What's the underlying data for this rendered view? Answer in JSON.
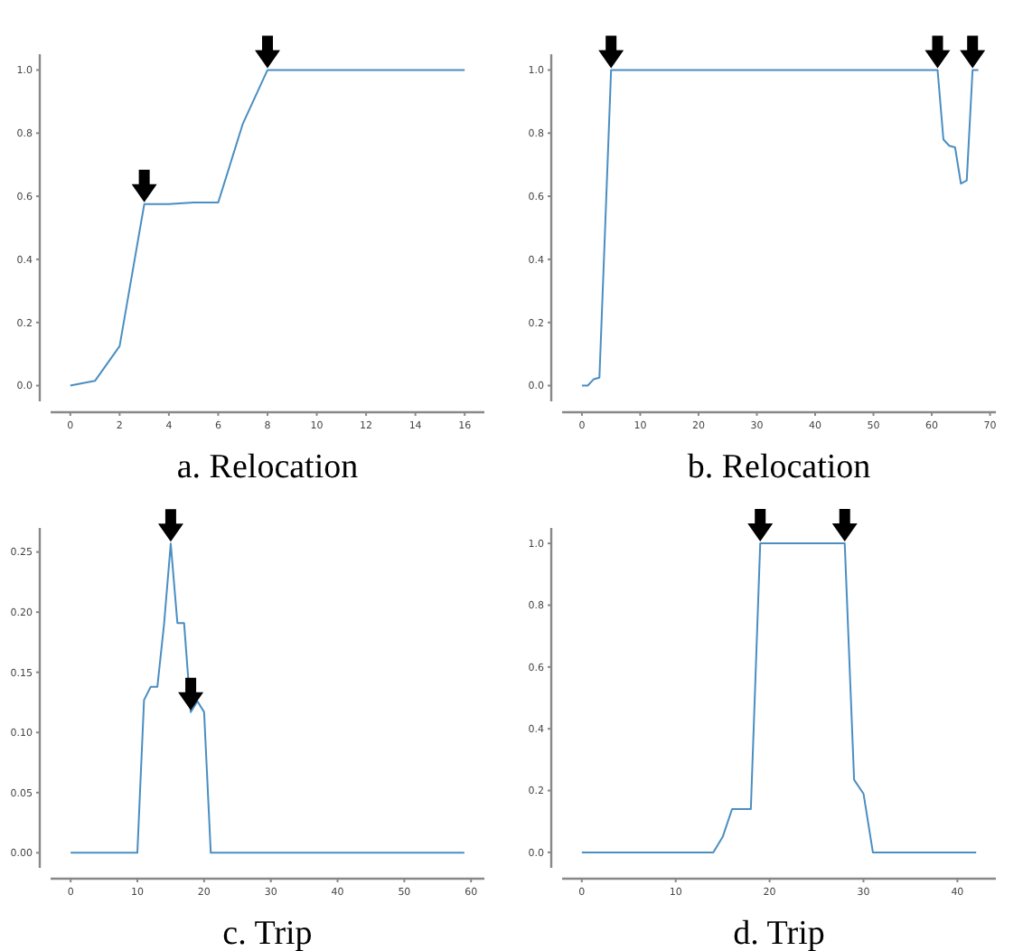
{
  "chart_data": [
    {
      "type": "line",
      "title": "a. Relocation",
      "x": [
        0,
        1,
        2,
        3,
        4,
        5,
        6,
        7,
        8,
        9,
        10,
        11,
        12,
        13,
        14,
        15,
        16
      ],
      "series": [
        {
          "color": "#4a8ec2",
          "values": [
            0,
            0.015,
            0.125,
            0.575,
            0.575,
            0.58,
            0.58,
            0.83,
            1,
            1,
            1,
            1,
            1,
            1,
            1,
            1,
            1
          ]
        }
      ],
      "xlim": [
        -0.8,
        16.8
      ],
      "xticks": [
        0,
        2,
        4,
        6,
        8,
        10,
        12,
        14,
        16
      ],
      "ylim": [
        -0.05,
        1.05
      ],
      "yticks": [
        {
          "value": 0,
          "label": "0.0"
        },
        {
          "value": 0.2,
          "label": "0.2"
        },
        {
          "value": 0.4,
          "label": "0.4"
        },
        {
          "value": 0.6,
          "label": "0.6"
        },
        {
          "value": 0.8,
          "label": "0.8"
        },
        {
          "value": 1,
          "label": "1.0"
        }
      ]
    },
    {
      "type": "line",
      "title": "b. Relocation",
      "x": [
        0,
        1,
        2,
        3,
        4,
        5,
        61,
        62,
        63,
        64,
        65,
        66,
        67,
        68
      ],
      "series": [
        {
          "color": "#4a8ec2",
          "values": [
            0,
            0,
            0.02,
            0.025,
            0.51,
            1,
            1,
            0.78,
            0.76,
            0.755,
            0.64,
            0.65,
            1,
            1
          ]
        }
      ],
      "xlim": [
        -3.4,
        71
      ],
      "xticks": [
        0,
        10,
        20,
        30,
        40,
        50,
        60,
        70
      ],
      "ylim": [
        -0.05,
        1.05
      ],
      "yticks": [
        {
          "value": 0,
          "label": "0.0"
        },
        {
          "value": 0.2,
          "label": "0.2"
        },
        {
          "value": 0.4,
          "label": "0.4"
        },
        {
          "value": 0.6,
          "label": "0.6"
        },
        {
          "value": 0.8,
          "label": "0.8"
        },
        {
          "value": 1,
          "label": "1.0"
        }
      ]
    },
    {
      "type": "line",
      "title": "c. Trip",
      "x": [
        0,
        10,
        11,
        12,
        13,
        14,
        15,
        16,
        17,
        18,
        19,
        20,
        21,
        59
      ],
      "series": [
        {
          "color": "#4a8ec2",
          "values": [
            0,
            0,
            0.127,
            0.138,
            0.138,
            0.19,
            0.257,
            0.191,
            0.191,
            0.117,
            0.126,
            0.117,
            0,
            0
          ]
        }
      ],
      "xlim": [
        -3,
        62
      ],
      "xticks": [
        0,
        10,
        20,
        30,
        40,
        50,
        60
      ],
      "ylim": [
        -0.0125,
        0.27
      ],
      "yticks": [
        {
          "value": 0,
          "label": "0.00"
        },
        {
          "value": 0.05,
          "label": "0.05"
        },
        {
          "value": 0.1,
          "label": "0.10"
        },
        {
          "value": 0.15,
          "label": "0.15"
        },
        {
          "value": 0.2,
          "label": "0.20"
        },
        {
          "value": 0.25,
          "label": "0.25"
        }
      ]
    },
    {
      "type": "line",
      "title": "d. Trip",
      "x": [
        0,
        14,
        15,
        16,
        17,
        18,
        19,
        28,
        29,
        30,
        31,
        42
      ],
      "series": [
        {
          "color": "#4a8ec2",
          "values": [
            0,
            0,
            0.05,
            0.14,
            0.14,
            0.14,
            1,
            1,
            0.235,
            0.19,
            0,
            0
          ]
        }
      ],
      "xlim": [
        -2.1,
        44.1
      ],
      "xticks": [
        0,
        10,
        20,
        30,
        40
      ],
      "ylim": [
        -0.05,
        1.05
      ],
      "yticks": [
        {
          "value": 0,
          "label": "0.0"
        },
        {
          "value": 0.2,
          "label": "0.2"
        },
        {
          "value": 0.4,
          "label": "0.4"
        },
        {
          "value": 0.6,
          "label": "0.6"
        },
        {
          "value": 0.8,
          "label": "0.8"
        },
        {
          "value": 1,
          "label": "1.0"
        }
      ]
    }
  ]
}
